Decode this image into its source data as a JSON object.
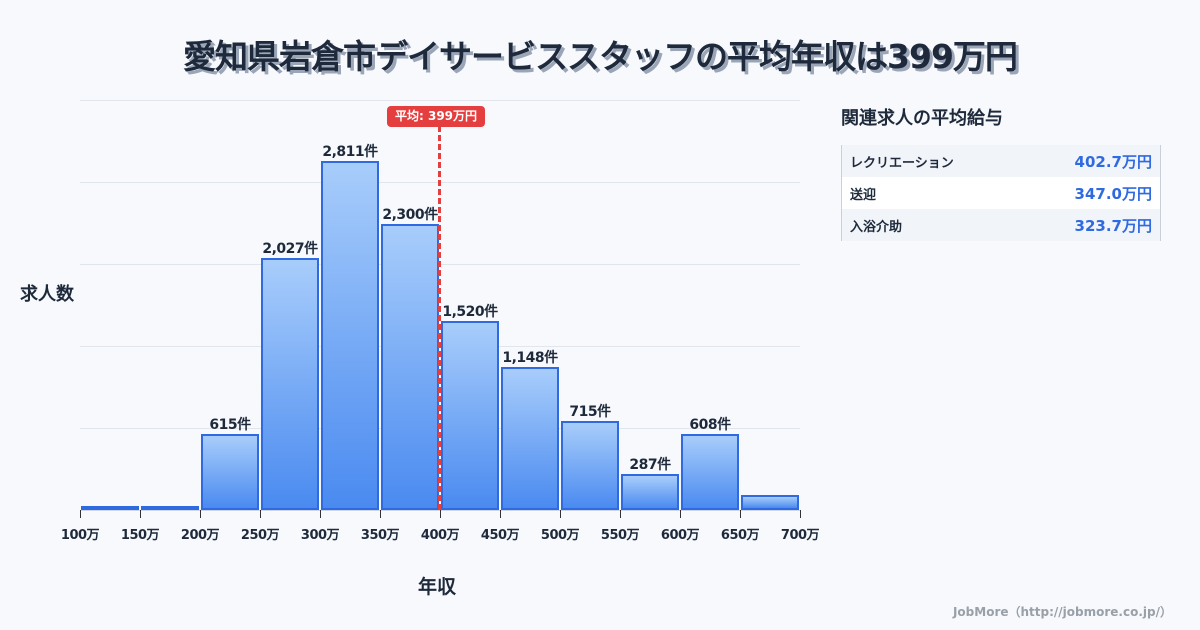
{
  "title": "愛知県岩倉市デイサービススタッフの平均年収は399万円",
  "axis": {
    "ylabel": "求人数",
    "xlabel": "年収"
  },
  "average": {
    "label": "平均: 399万円",
    "value": 399
  },
  "ticks": [
    "100万",
    "150万",
    "200万",
    "250万",
    "300万",
    "350万",
    "400万",
    "450万",
    "500万",
    "550万",
    "600万",
    "650万",
    "700万"
  ],
  "bars": [
    {
      "range": "100-150",
      "count": 8,
      "label": ""
    },
    {
      "range": "150-200",
      "count": 8,
      "label": ""
    },
    {
      "range": "200-250",
      "count": 615,
      "label": "615件"
    },
    {
      "range": "250-300",
      "count": 2027,
      "label": "2,027件"
    },
    {
      "range": "300-350",
      "count": 2811,
      "label": "2,811件"
    },
    {
      "range": "350-400",
      "count": 2300,
      "label": "2,300件"
    },
    {
      "range": "400-450",
      "count": 1520,
      "label": "1,520件"
    },
    {
      "range": "450-500",
      "count": 1148,
      "label": "1,148件"
    },
    {
      "range": "500-550",
      "count": 715,
      "label": "715件"
    },
    {
      "range": "550-600",
      "count": 287,
      "label": "287件"
    },
    {
      "range": "600-650",
      "count": 608,
      "label": "608件"
    },
    {
      "range": "650-700",
      "count": 120,
      "label": ""
    }
  ],
  "sidebar": {
    "title": "関連求人の平均給与",
    "rows": [
      {
        "name": "レクリエーション",
        "value": "402.7万円"
      },
      {
        "name": "送迎",
        "value": "347.0万円"
      },
      {
        "name": "入浴介助",
        "value": "323.7万円"
      }
    ]
  },
  "watermark": "JobMore（http://jobmore.co.jp/）",
  "colors": {
    "bar_top": "#a8cdfb",
    "bar_bottom": "#4a8af0",
    "bar_border": "#2f6ae0",
    "average_line": "#e53e3e",
    "value_text": "#2f6ae0"
  },
  "chart_data": {
    "type": "bar",
    "title": "愛知県岩倉市デイサービススタッフの平均年収は399万円",
    "xlabel": "年収",
    "ylabel": "求人数",
    "categories": [
      "100-150万",
      "150-200万",
      "200-250万",
      "250-300万",
      "300-350万",
      "350-400万",
      "400-450万",
      "450-500万",
      "500-550万",
      "550-600万",
      "600-650万",
      "650-700万"
    ],
    "values": [
      8,
      8,
      615,
      2027,
      2811,
      2300,
      1520,
      1148,
      715,
      287,
      608,
      120
    ],
    "ylim": [
      0,
      3300
    ],
    "grid": true,
    "annotations": [
      {
        "type": "vline",
        "x": 399,
        "label": "平均: 399万円"
      }
    ]
  }
}
